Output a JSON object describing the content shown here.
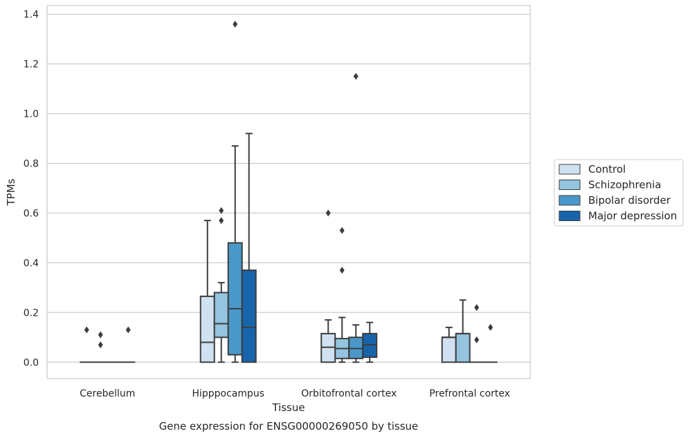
{
  "caption": "Gene expression for ENSG00000269050 by tissue",
  "chart_data": {
    "type": "box",
    "title": "",
    "xlabel": "Tissue",
    "ylabel": "TPMs",
    "ylim": [
      -0.066,
      1.435
    ],
    "yticks": [
      "0.0",
      "0.2",
      "0.4",
      "0.6",
      "0.8",
      "1.0",
      "1.2",
      "1.4"
    ],
    "grid": "horizontal",
    "legend_position": "right",
    "categories": [
      "Cerebellum",
      "Hipppocampus",
      "Orbitofrontal cortex",
      "Prefrontal cortex"
    ],
    "series": [
      {
        "name": "Control",
        "color": "#d0e1f2",
        "boxes": [
          {
            "whisker_low": 0,
            "q1": 0,
            "median": 0,
            "q3": 0,
            "whisker_high": 0,
            "outliers": [
              0.13
            ]
          },
          {
            "whisker_low": 0,
            "q1": 0,
            "median": 0.08,
            "q3": 0.265,
            "whisker_high": 0.57,
            "outliers": []
          },
          {
            "whisker_low": 0,
            "q1": 0,
            "median": 0.06,
            "q3": 0.115,
            "whisker_high": 0.17,
            "outliers": [
              0.6
            ]
          },
          {
            "whisker_low": 0,
            "q1": 0,
            "median": 0.1,
            "q3": 0.1,
            "whisker_high": 0.14,
            "outliers": []
          }
        ]
      },
      {
        "name": "Schizophrenia",
        "color": "#94c4df",
        "boxes": [
          {
            "whisker_low": 0,
            "q1": 0,
            "median": 0,
            "q3": 0,
            "whisker_high": 0,
            "outliers": [
              0.11,
              0.07
            ]
          },
          {
            "whisker_low": 0,
            "q1": 0.1,
            "median": 0.155,
            "q3": 0.28,
            "whisker_high": 0.32,
            "outliers": [
              0.61,
              0.57
            ]
          },
          {
            "whisker_low": 0,
            "q1": 0.015,
            "median": 0.055,
            "q3": 0.095,
            "whisker_high": 0.18,
            "outliers": [
              0.53,
              0.37
            ]
          },
          {
            "whisker_low": 0,
            "q1": 0,
            "median": 0.115,
            "q3": 0.115,
            "whisker_high": 0.25,
            "outliers": []
          }
        ]
      },
      {
        "name": "Bipolar disorder",
        "color": "#4a98c9",
        "boxes": [
          {
            "whisker_low": 0,
            "q1": 0,
            "median": 0,
            "q3": 0,
            "whisker_high": 0,
            "outliers": []
          },
          {
            "whisker_low": 0,
            "q1": 0.03,
            "median": 0.215,
            "q3": 0.48,
            "whisker_high": 0.87,
            "outliers": [
              1.36
            ]
          },
          {
            "whisker_low": 0,
            "q1": 0.015,
            "median": 0.055,
            "q3": 0.1,
            "whisker_high": 0.15,
            "outliers": [
              1.15
            ]
          },
          {
            "whisker_low": 0,
            "q1": 0,
            "median": 0,
            "q3": 0,
            "whisker_high": 0,
            "outliers": [
              0.22,
              0.09
            ]
          }
        ]
      },
      {
        "name": "Major depression",
        "color": "#1764ab",
        "boxes": [
          {
            "whisker_low": 0,
            "q1": 0,
            "median": 0,
            "q3": 0,
            "whisker_high": 0,
            "outliers": [
              0.13
            ]
          },
          {
            "whisker_low": 0,
            "q1": 0,
            "median": 0.14,
            "q3": 0.37,
            "whisker_high": 0.92,
            "outliers": []
          },
          {
            "whisker_low": 0,
            "q1": 0.02,
            "median": 0.07,
            "q3": 0.115,
            "whisker_high": 0.16,
            "outliers": []
          },
          {
            "whisker_low": 0,
            "q1": 0,
            "median": 0,
            "q3": 0,
            "whisker_high": 0,
            "outliers": [
              0.14
            ]
          }
        ]
      }
    ]
  }
}
